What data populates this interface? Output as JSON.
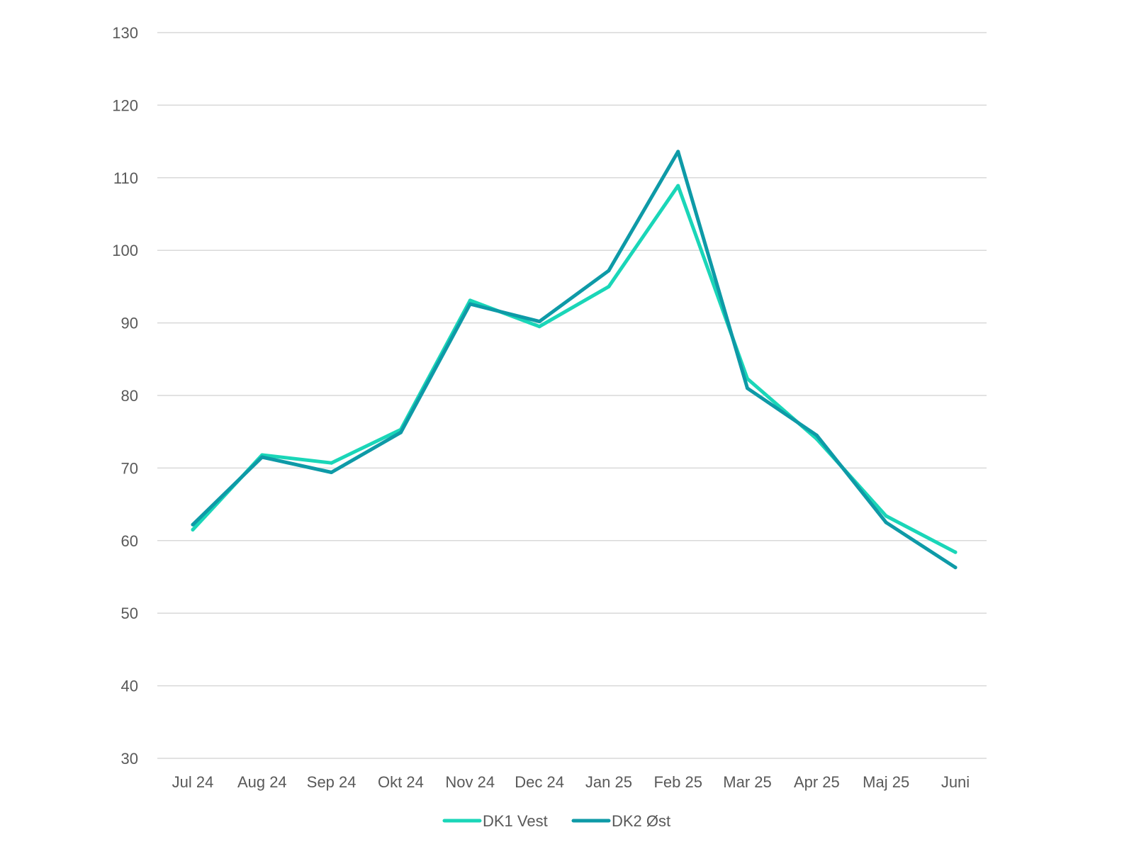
{
  "chart_data": {
    "type": "line",
    "title": "",
    "xlabel": "",
    "ylabel": "",
    "categories": [
      "Jul 24",
      "Aug 24",
      "Sep 24",
      "Okt 24",
      "Nov 24",
      "Dec 24",
      "Jan 25",
      "Feb 25",
      "Mar 25",
      "Apr 25",
      "Maj 25",
      "Juni"
    ],
    "ylim": [
      30,
      130
    ],
    "yticks": [
      30,
      40,
      50,
      60,
      70,
      80,
      90,
      100,
      110,
      120,
      130
    ],
    "grid": true,
    "legend_position": "bottom",
    "series": [
      {
        "name": "DK1 Vest",
        "color": "#1ad6b8",
        "values": [
          61.5,
          71.8,
          70.7,
          75.3,
          93.1,
          89.5,
          95.0,
          108.9,
          82.3,
          74.0,
          63.4,
          58.4
        ]
      },
      {
        "name": "DK2 Øst",
        "color": "#0e9aa7",
        "values": [
          62.2,
          71.5,
          69.4,
          74.9,
          92.6,
          90.2,
          97.2,
          113.6,
          81.0,
          74.5,
          62.5,
          56.3
        ]
      }
    ]
  }
}
